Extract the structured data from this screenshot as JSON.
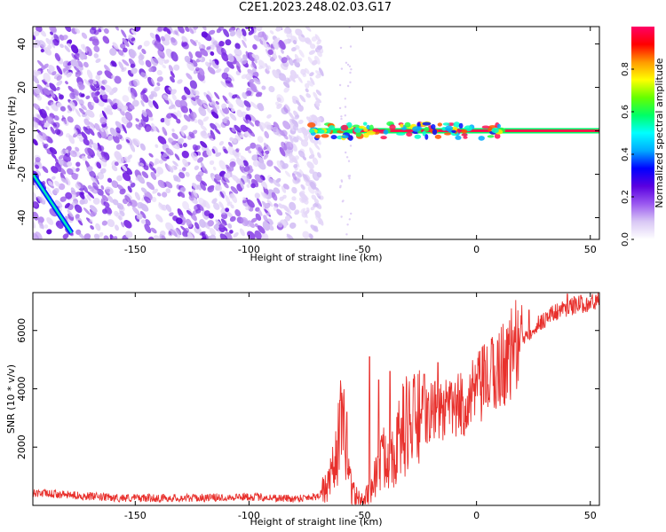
{
  "figure": {
    "title": "C2E1.2023.248.02.03.G17"
  },
  "chart_data": [
    {
      "type": "heatmap",
      "xlabel": "Height of straight line (km)",
      "ylabel": "Frequency (Hz)",
      "xlim": [
        -195,
        54
      ],
      "ylim": [
        -50,
        48
      ],
      "xticks": [
        -150,
        -100,
        -50,
        0,
        50
      ],
      "yticks": [
        -40,
        -20,
        0,
        20,
        40
      ],
      "colorbar": {
        "label": "Normalized spectral amplitude",
        "range": [
          0,
          1
        ],
        "ticks": [
          0.0,
          0.2,
          0.4,
          0.6,
          0.8
        ],
        "colormap": [
          "#ffffff",
          "#d9c8f5",
          "#9b59f0",
          "#5a00e0",
          "#0000ff",
          "#00aaff",
          "#00ffff",
          "#00ff66",
          "#66ff00",
          "#ffff00",
          "#ff9900",
          "#ff0000",
          "#ff0066"
        ]
      },
      "features": {
        "noise_region_x": [
          -195,
          -72
        ],
        "main_line_start_x": -73,
        "main_line_freq_hz": 0,
        "chirp_line": {
          "x": [
            -195,
            -178
          ],
          "freq": [
            -20,
            -47
          ]
        }
      },
      "grid": false
    },
    {
      "type": "line",
      "xlabel": "Height of straight line (km)",
      "ylabel": "SNR (10 * v/v)",
      "xlim": [
        -195,
        54
      ],
      "ylim": [
        0,
        7300
      ],
      "xticks": [
        -150,
        -100,
        -50,
        0,
        50
      ],
      "yticks": [
        2000,
        4000,
        6000
      ],
      "color": "#e8302c",
      "series_profile": {
        "x": [
          -195,
          -180,
          -160,
          -140,
          -120,
          -100,
          -80,
          -70,
          -65,
          -62,
          -60,
          -58,
          -55,
          -52,
          -50,
          -48,
          -45,
          -42,
          -40,
          -37,
          -35,
          -33,
          -30,
          -27,
          -25,
          -22,
          -20,
          -15,
          -10,
          -5,
          0,
          5,
          10,
          15,
          20,
          25,
          30,
          35,
          40,
          45,
          50,
          54
        ],
        "y": [
          430,
          360,
          260,
          250,
          260,
          300,
          230,
          320,
          650,
          1500,
          2700,
          2400,
          600,
          180,
          100,
          380,
          900,
          1500,
          1700,
          1800,
          2000,
          2500,
          2900,
          2800,
          3100,
          3000,
          3200,
          3200,
          3300,
          3500,
          3900,
          4300,
          4700,
          5200,
          5700,
          6100,
          6400,
          6650,
          6800,
          6900,
          6950,
          7000
        ]
      },
      "spikes": [
        {
          "x": -60,
          "y": 3600
        },
        {
          "x": -57,
          "y": 3200
        },
        {
          "x": -47,
          "y": 5100
        },
        {
          "x": -43,
          "y": 4300
        },
        {
          "x": -38,
          "y": 4600
        },
        {
          "x": -23,
          "y": 4500
        },
        {
          "x": -17,
          "y": 4900
        },
        {
          "x": -11,
          "y": 4200
        },
        {
          "x": 0,
          "y": 4500
        },
        {
          "x": 17,
          "y": 5600
        },
        {
          "x": 23,
          "y": 6700
        },
        {
          "x": 40,
          "y": 7250
        }
      ],
      "grid": false
    }
  ]
}
